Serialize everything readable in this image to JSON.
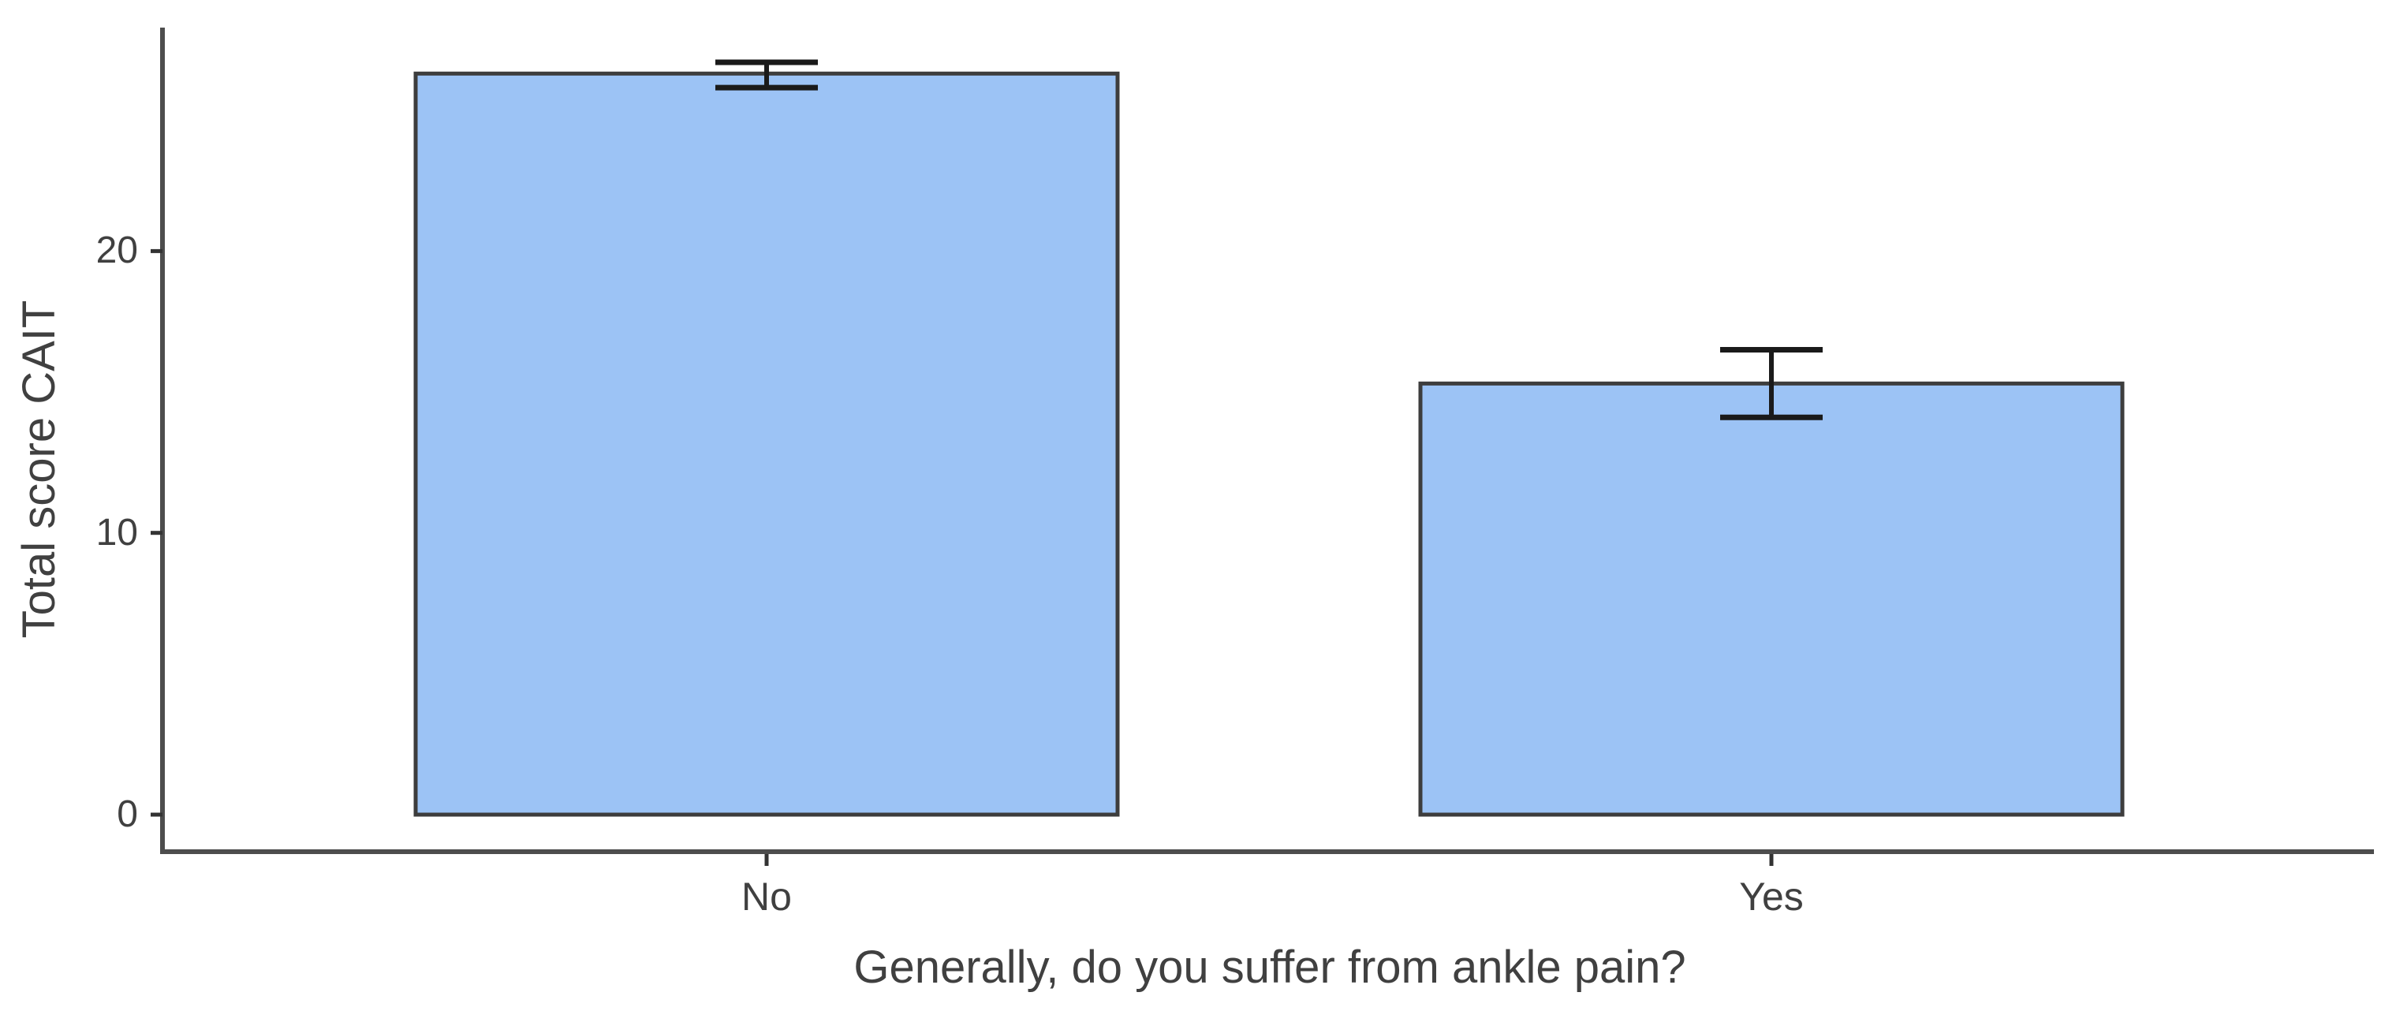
{
  "chart_data": {
    "type": "bar",
    "title": "",
    "xlabel": "Generally, do you suffer from ankle pain?",
    "ylabel": "Total score CAIT",
    "categories": [
      "No",
      "Yes"
    ],
    "values": [
      26.3,
      15.3
    ],
    "error_low": [
      25.8,
      14.1
    ],
    "error_high": [
      26.7,
      16.5
    ],
    "yticks": [
      0,
      10,
      20
    ],
    "ylim": [
      0,
      27.9
    ],
    "grid": "off",
    "legend": "none",
    "colors": {
      "bar_fill": "#9cc3f5",
      "bar_border": "#3d3d3d",
      "error_bar": "#1a1a1a",
      "axis_line": "#4d4d4d",
      "tick_mark": "#333333",
      "text": "#404040",
      "background": "#ffffff"
    }
  }
}
